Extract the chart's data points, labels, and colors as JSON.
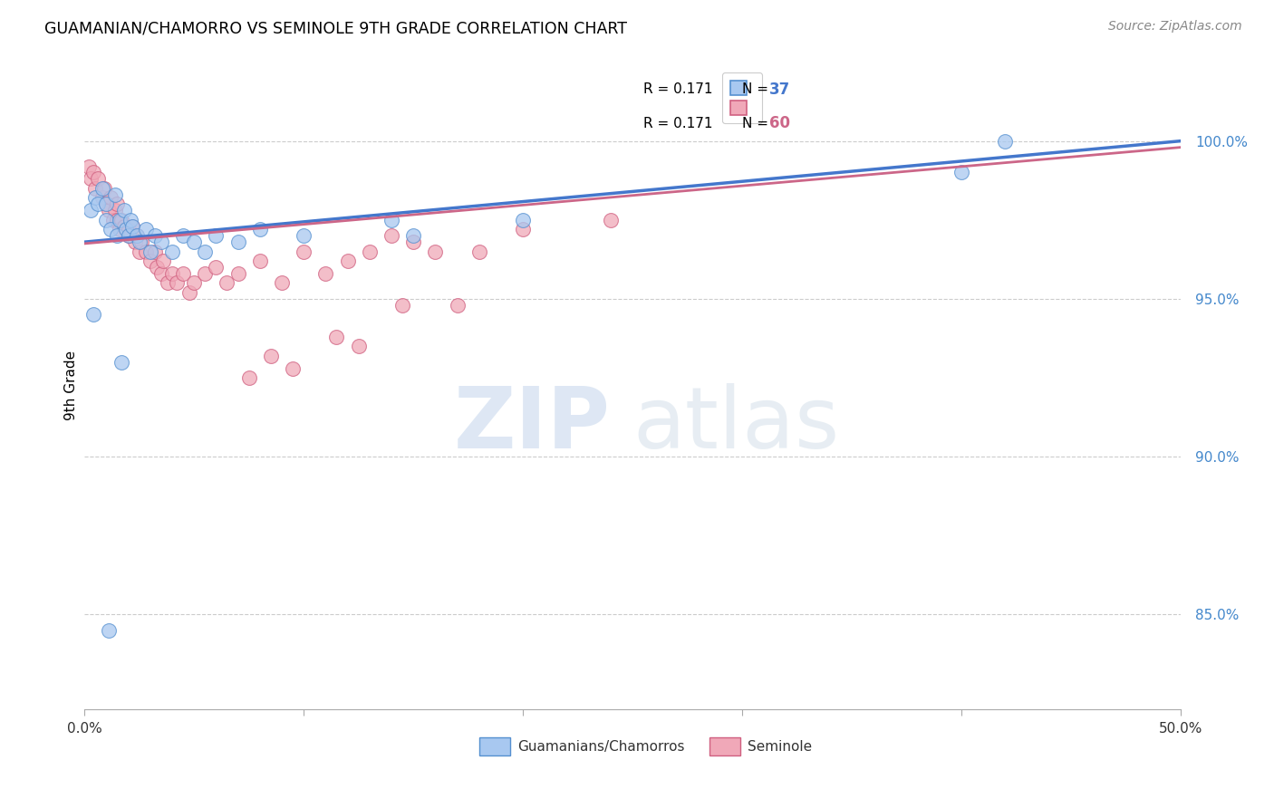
{
  "title": "GUAMANIAN/CHAMORRO VS SEMINOLE 9TH GRADE CORRELATION CHART",
  "source": "Source: ZipAtlas.com",
  "ylabel": "9th Grade",
  "yticks": [
    85.0,
    90.0,
    95.0,
    100.0
  ],
  "ytick_labels": [
    "85.0%",
    "90.0%",
    "95.0%",
    "100.0%"
  ],
  "xlim": [
    0.0,
    50.0
  ],
  "ylim": [
    82.0,
    102.5
  ],
  "watermark_zip": "ZIP",
  "watermark_atlas": "atlas",
  "legend_blue_r": "R = 0.171",
  "legend_blue_n": "N = 37",
  "legend_pink_r": "R = 0.171",
  "legend_pink_n": "N = 60",
  "blue_fill": "#a8c8f0",
  "blue_edge": "#5590d0",
  "pink_fill": "#f0a8b8",
  "pink_edge": "#d06080",
  "line_blue": "#4477cc",
  "line_pink": "#cc6688",
  "blue_scatter_x": [
    0.3,
    0.5,
    0.6,
    0.8,
    1.0,
    1.0,
    1.2,
    1.4,
    1.5,
    1.6,
    1.8,
    1.9,
    2.0,
    2.1,
    2.2,
    2.4,
    2.5,
    2.8,
    3.0,
    3.2,
    3.5,
    4.0,
    4.5,
    5.0,
    5.5,
    6.0,
    7.0,
    8.0,
    10.0,
    14.0,
    15.0,
    20.0,
    40.0,
    42.0,
    0.4,
    1.1,
    1.7
  ],
  "blue_scatter_y": [
    97.8,
    98.2,
    98.0,
    98.5,
    97.5,
    98.0,
    97.2,
    98.3,
    97.0,
    97.5,
    97.8,
    97.2,
    97.0,
    97.5,
    97.3,
    97.0,
    96.8,
    97.2,
    96.5,
    97.0,
    96.8,
    96.5,
    97.0,
    96.8,
    96.5,
    97.0,
    96.8,
    97.2,
    97.0,
    97.5,
    97.0,
    97.5,
    99.0,
    100.0,
    94.5,
    84.5,
    93.0
  ],
  "pink_scatter_x": [
    0.2,
    0.3,
    0.4,
    0.5,
    0.6,
    0.8,
    0.9,
    1.0,
    1.1,
    1.2,
    1.3,
    1.4,
    1.5,
    1.5,
    1.6,
    1.7,
    1.8,
    2.0,
    2.0,
    2.1,
    2.2,
    2.3,
    2.4,
    2.5,
    2.6,
    2.8,
    3.0,
    3.2,
    3.3,
    3.5,
    3.6,
    3.8,
    4.0,
    4.2,
    4.5,
    4.8,
    5.0,
    5.5,
    6.0,
    6.5,
    7.0,
    7.5,
    8.0,
    8.5,
    9.0,
    9.5,
    10.0,
    11.0,
    11.5,
    12.0,
    12.5,
    13.0,
    14.0,
    14.5,
    15.0,
    16.0,
    17.0,
    18.0,
    20.0,
    24.0
  ],
  "pink_scatter_y": [
    99.2,
    98.8,
    99.0,
    98.5,
    98.8,
    98.2,
    98.5,
    98.0,
    97.8,
    98.2,
    97.5,
    97.8,
    97.5,
    98.0,
    97.2,
    97.5,
    97.3,
    97.0,
    97.2,
    97.0,
    97.3,
    96.8,
    97.0,
    96.5,
    96.8,
    96.5,
    96.2,
    96.5,
    96.0,
    95.8,
    96.2,
    95.5,
    95.8,
    95.5,
    95.8,
    95.2,
    95.5,
    95.8,
    96.0,
    95.5,
    95.8,
    92.5,
    96.2,
    93.2,
    95.5,
    92.8,
    96.5,
    95.8,
    93.8,
    96.2,
    93.5,
    96.5,
    97.0,
    94.8,
    96.8,
    96.5,
    94.8,
    96.5,
    97.2,
    97.5
  ],
  "xtick_positions": [
    0,
    10,
    20,
    30,
    40,
    50
  ],
  "xtick_labels": [
    "0.0%",
    "",
    "",
    "",
    "",
    "50.0%"
  ]
}
